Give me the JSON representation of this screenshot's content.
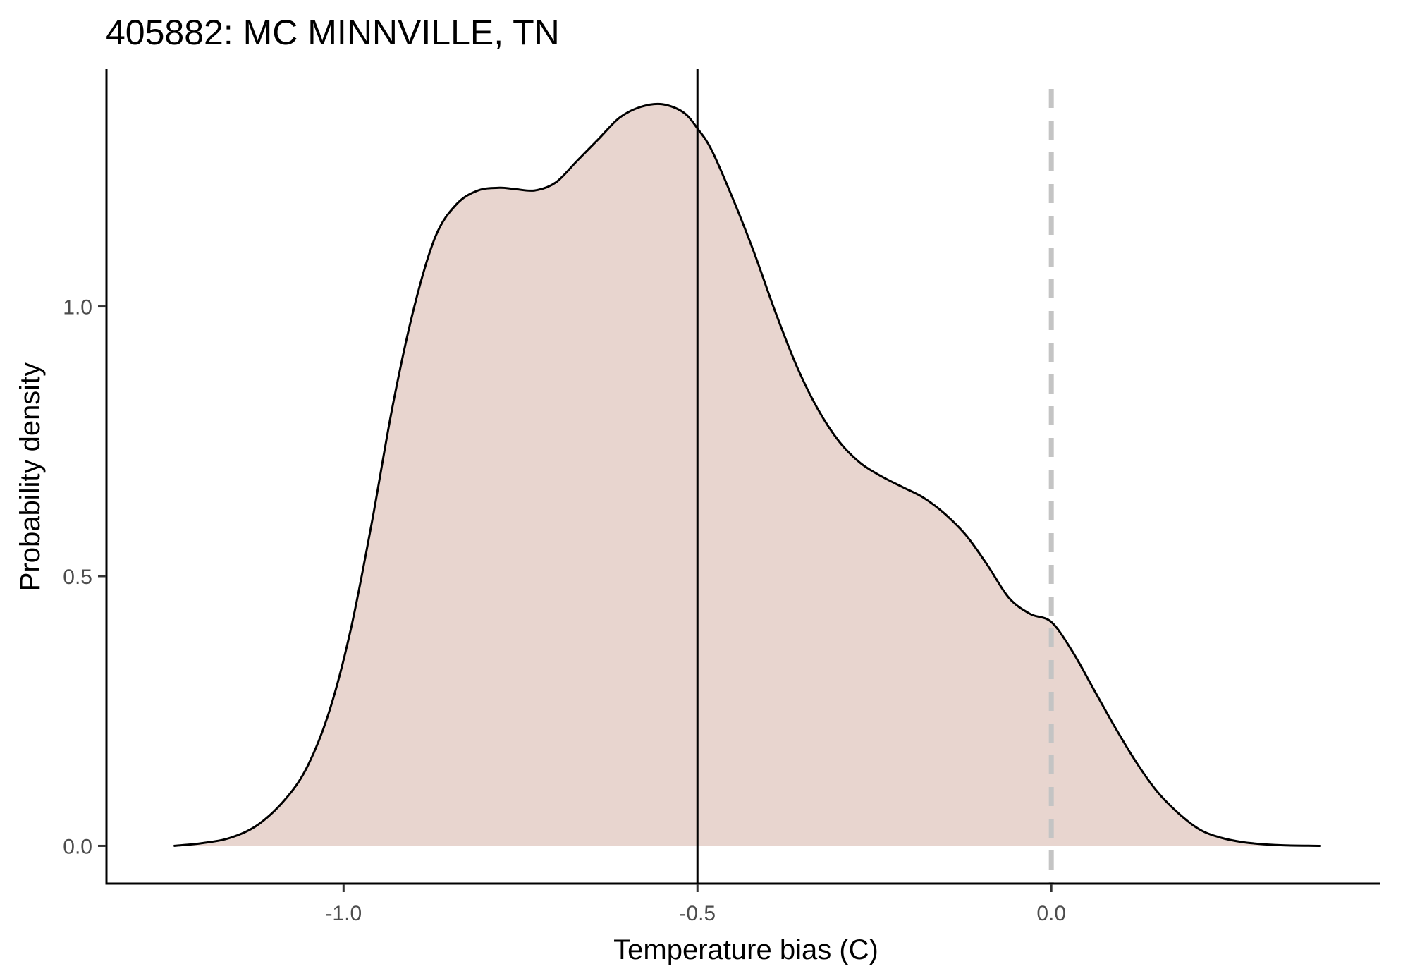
{
  "chart_data": {
    "type": "area",
    "title": "405882: MC MINNVILLE, TN",
    "xlabel": "Temperature bias (C)",
    "ylabel": "Probability density",
    "xlim": [
      -1.335,
      0.465
    ],
    "ylim": [
      -0.07,
      1.44
    ],
    "x_ticks": [
      -1.0,
      -0.5,
      0.0
    ],
    "x_tick_labels": [
      "-1.0",
      "-0.5",
      "0.0"
    ],
    "y_ticks": [
      0.0,
      0.5,
      1.0
    ],
    "y_tick_labels": [
      "0.0",
      "0.5",
      "1.0"
    ],
    "grid": false,
    "legend": "none",
    "colors": {
      "fill": "#e8d5cf",
      "line": "#000000",
      "reference_line": "#c4c4c4"
    },
    "series": [
      {
        "x": [
          -1.24,
          -1.2,
          -1.16,
          -1.12,
          -1.08,
          -1.05,
          -1.02,
          -0.99,
          -0.96,
          -0.93,
          -0.9,
          -0.87,
          -0.84,
          -0.81,
          -0.78,
          -0.76,
          -0.73,
          -0.7,
          -0.67,
          -0.64,
          -0.61,
          -0.58,
          -0.55,
          -0.52,
          -0.5,
          -0.48,
          -0.45,
          -0.42,
          -0.39,
          -0.36,
          -0.33,
          -0.3,
          -0.27,
          -0.24,
          -0.21,
          -0.18,
          -0.15,
          -0.12,
          -0.09,
          -0.06,
          -0.03,
          0.0,
          0.03,
          0.06,
          0.09,
          0.12,
          0.15,
          0.18,
          0.21,
          0.24,
          0.27,
          0.3,
          0.33,
          0.38
        ],
        "y": [
          0.0,
          0.005,
          0.015,
          0.04,
          0.09,
          0.15,
          0.25,
          0.4,
          0.6,
          0.82,
          1.0,
          1.13,
          1.19,
          1.215,
          1.22,
          1.218,
          1.215,
          1.23,
          1.27,
          1.31,
          1.35,
          1.37,
          1.375,
          1.36,
          1.33,
          1.29,
          1.2,
          1.1,
          0.99,
          0.89,
          0.81,
          0.75,
          0.71,
          0.685,
          0.665,
          0.645,
          0.615,
          0.575,
          0.52,
          0.46,
          0.43,
          0.415,
          0.36,
          0.29,
          0.22,
          0.155,
          0.1,
          0.06,
          0.03,
          0.015,
          0.007,
          0.003,
          0.001,
          0.0
        ]
      }
    ],
    "vertical_lines": [
      {
        "x": -0.5,
        "style": "solid",
        "color": "#000000"
      },
      {
        "x": 0.0,
        "style": "dashed",
        "color": "#c4c4c4"
      }
    ]
  }
}
